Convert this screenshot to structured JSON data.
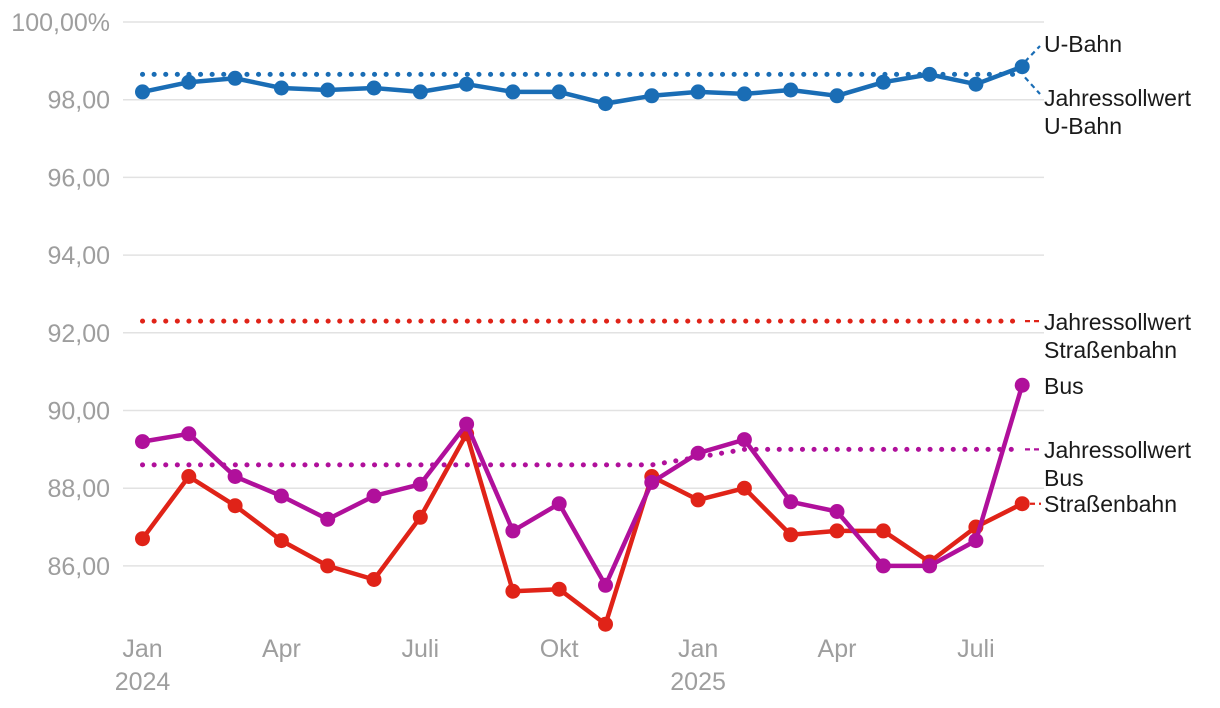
{
  "chart_data": {
    "type": "line",
    "title": "",
    "xlabel": "",
    "ylabel": "",
    "x": [
      "Jan 2024",
      "Feb 2024",
      "Mär 2024",
      "Apr 2024",
      "Mai 2024",
      "Jun 2024",
      "Juli 2024",
      "Aug 2024",
      "Sep 2024",
      "Okt 2024",
      "Nov 2024",
      "Dez 2024",
      "Jan 2025",
      "Feb 2025",
      "Mär 2025",
      "Apr 2025",
      "Mai 2025",
      "Jun 2025",
      "Juli 2025",
      "Aug 2025"
    ],
    "x_ticks": [
      {
        "index": 0,
        "lines": [
          "Jan",
          "2024"
        ]
      },
      {
        "index": 3,
        "lines": [
          "Apr"
        ]
      },
      {
        "index": 6,
        "lines": [
          "Juli"
        ]
      },
      {
        "index": 9,
        "lines": [
          "Okt"
        ]
      },
      {
        "index": 12,
        "lines": [
          "Jan",
          "2025"
        ]
      },
      {
        "index": 15,
        "lines": [
          "Apr"
        ]
      },
      {
        "index": 18,
        "lines": [
          "Juli"
        ]
      }
    ],
    "yticks": [
      {
        "value": 100,
        "label": "100,00%"
      },
      {
        "value": 98,
        "label": "98,00"
      },
      {
        "value": 96,
        "label": "96,00"
      },
      {
        "value": 94,
        "label": "94,00"
      },
      {
        "value": 92,
        "label": "92,00"
      },
      {
        "value": 90,
        "label": "90,00"
      },
      {
        "value": 88,
        "label": "88,00"
      },
      {
        "value": 86,
        "label": "86,00"
      }
    ],
    "ylim": [
      84.3,
      100.5
    ],
    "grid": "horizontal",
    "legend_position": "right-annotations",
    "series": [
      {
        "name": "U-Bahn",
        "color": "#1a6db5",
        "values": [
          98.2,
          98.45,
          98.55,
          98.3,
          98.25,
          98.3,
          98.2,
          98.4,
          98.2,
          98.2,
          97.9,
          98.1,
          98.2,
          98.15,
          98.25,
          98.1,
          98.45,
          98.65,
          98.4,
          98.85
        ]
      },
      {
        "name": "Straßenbahn",
        "color": "#e02318",
        "values": [
          86.7,
          88.3,
          87.55,
          86.65,
          86.0,
          85.65,
          87.25,
          89.4,
          85.35,
          85.4,
          84.5,
          88.3,
          87.7,
          88.0,
          86.8,
          86.9,
          86.9,
          86.1,
          87.0,
          87.6
        ]
      },
      {
        "name": "Bus",
        "color": "#b0109b",
        "values": [
          89.2,
          89.4,
          88.3,
          87.8,
          87.2,
          87.8,
          88.1,
          89.65,
          86.9,
          87.6,
          85.5,
          88.15,
          88.9,
          89.25,
          87.65,
          87.4,
          86.0,
          86.0,
          86.65,
          90.65
        ]
      }
    ],
    "target_lines": [
      {
        "name": "Jahressollwert U-Bahn",
        "color": "#1a6db5",
        "style": "dotted",
        "value_2024": 98.65,
        "value_2025": 98.65,
        "breakpoints": [
          [
            0,
            98.65
          ],
          [
            19,
            98.65
          ]
        ]
      },
      {
        "name": "Jahressollwert Straßenbahn",
        "color": "#e02318",
        "style": "dotted",
        "value_2024": 92.3,
        "value_2025": 92.3,
        "breakpoints": [
          [
            0,
            92.3
          ],
          [
            19,
            92.3
          ]
        ]
      },
      {
        "name": "Jahressollwert Bus",
        "color": "#b0109b",
        "style": "dotted",
        "value_2024": 88.6,
        "value_2025": 89.0,
        "breakpoints": [
          [
            0,
            88.6
          ],
          [
            11,
            88.6
          ],
          [
            13,
            89.0
          ],
          [
            19,
            89.0
          ]
        ]
      }
    ]
  },
  "annotations": [
    {
      "id": "u-bahn",
      "series": "U-Bahn",
      "lines": [
        "U-Bahn"
      ]
    },
    {
      "id": "jsw-u-bahn",
      "series": "Jahressollwert U-Bahn",
      "lines": [
        "Jahressollwert",
        "U-Bahn"
      ]
    },
    {
      "id": "jsw-strassenbahn",
      "series": "Jahressollwert Straßenbahn",
      "lines": [
        "Jahressollwert",
        "Straßenbahn"
      ]
    },
    {
      "id": "bus",
      "series": "Bus",
      "lines": [
        "Bus"
      ]
    },
    {
      "id": "jsw-bus",
      "series": "Jahressollwert Bus",
      "lines": [
        "Jahressollwert",
        "Bus"
      ]
    },
    {
      "id": "strassenbahn",
      "series": "Straßenbahn",
      "lines": [
        "Straßenbahn"
      ]
    }
  ],
  "colors": {
    "u_bahn": "#1a6db5",
    "bus": "#b0109b",
    "strassenbahn": "#e02318",
    "gridline": "#e2e2e2",
    "axis_text": "#9e9e9e",
    "annotation_text": "#1a1a1a",
    "background": "#ffffff"
  }
}
